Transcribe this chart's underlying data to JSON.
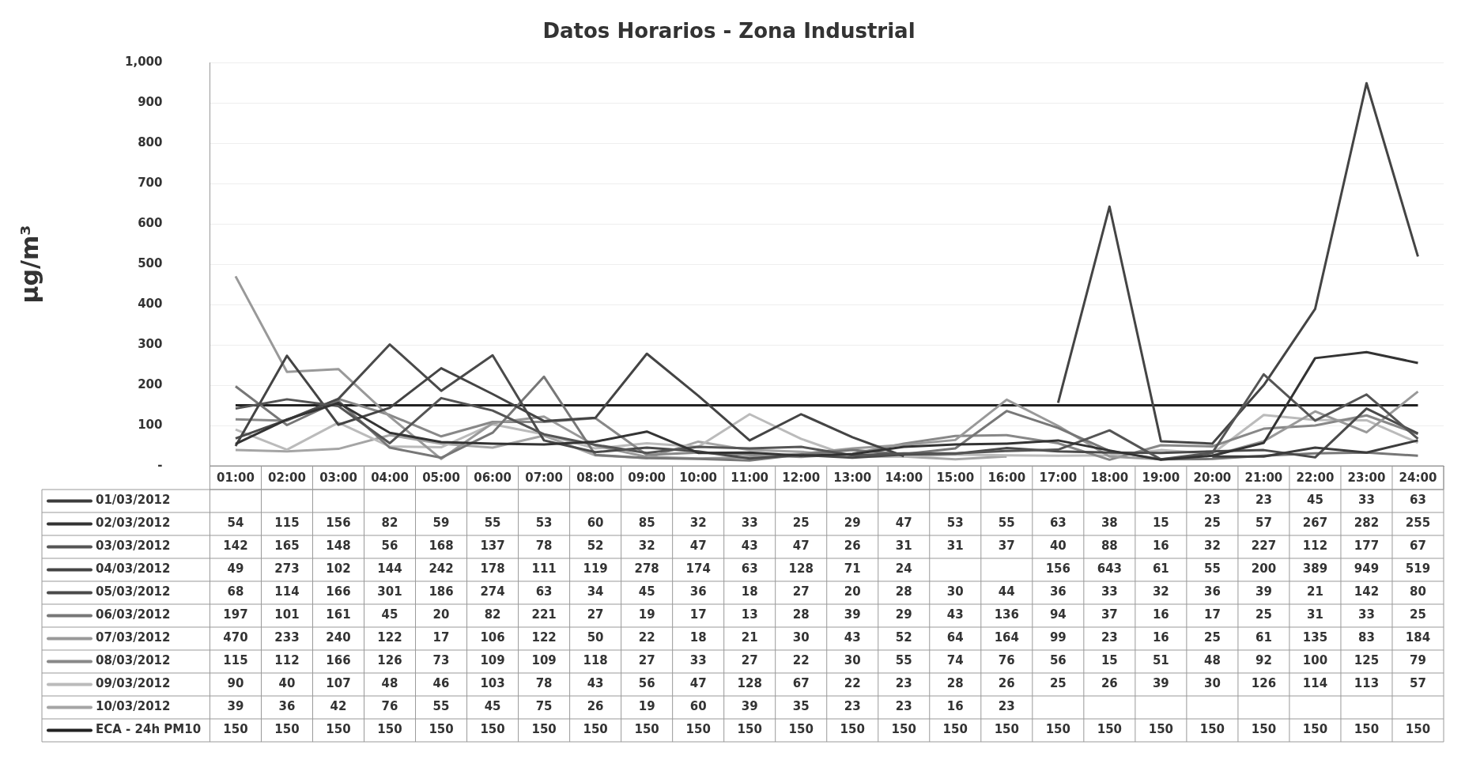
{
  "chart_data": {
    "type": "line",
    "title": "Datos Horarios - Zona Industrial",
    "ylabel": "µg/m³",
    "categories": [
      "01:00",
      "02:00",
      "03:00",
      "04:00",
      "05:00",
      "06:00",
      "07:00",
      "08:00",
      "09:00",
      "10:00",
      "11:00",
      "12:00",
      "13:00",
      "14:00",
      "15:00",
      "16:00",
      "17:00",
      "18:00",
      "19:00",
      "20:00",
      "21:00",
      "22:00",
      "23:00",
      "24:00"
    ],
    "series": [
      {
        "name": "01/03/2012",
        "color": "#3c3c3c",
        "values": [
          null,
          null,
          null,
          null,
          null,
          null,
          null,
          null,
          null,
          null,
          null,
          null,
          null,
          null,
          null,
          null,
          null,
          null,
          null,
          23,
          23,
          45,
          33,
          63
        ]
      },
      {
        "name": "02/03/2012",
        "color": "#333333",
        "values": [
          54,
          115,
          156,
          82,
          59,
          55,
          53,
          60,
          85,
          32,
          33,
          25,
          29,
          47,
          53,
          55,
          63,
          38,
          15,
          25,
          57,
          267,
          282,
          255
        ]
      },
      {
        "name": "03/03/2012",
        "color": "#555555",
        "values": [
          142,
          165,
          148,
          56,
          168,
          137,
          78,
          52,
          32,
          47,
          43,
          47,
          26,
          31,
          31,
          37,
          40,
          88,
          16,
          32,
          227,
          112,
          177,
          67
        ]
      },
      {
        "name": "04/03/2012",
        "color": "#444444",
        "values": [
          49,
          273,
          102,
          144,
          242,
          178,
          111,
          119,
          278,
          174,
          63,
          128,
          71,
          24,
          null,
          null,
          156,
          643,
          61,
          55,
          200,
          389,
          949,
          519
        ]
      },
      {
        "name": "05/03/2012",
        "color": "#4a4a4a",
        "values": [
          68,
          114,
          166,
          301,
          186,
          274,
          63,
          34,
          45,
          36,
          18,
          27,
          20,
          28,
          30,
          44,
          36,
          33,
          32,
          36,
          39,
          21,
          142,
          80
        ]
      },
      {
        "name": "06/03/2012",
        "color": "#777777",
        "values": [
          197,
          101,
          161,
          45,
          20,
          82,
          221,
          27,
          19,
          17,
          13,
          28,
          39,
          29,
          43,
          136,
          94,
          37,
          16,
          17,
          25,
          31,
          33,
          25
        ]
      },
      {
        "name": "07/03/2012",
        "color": "#999999",
        "values": [
          470,
          233,
          240,
          122,
          17,
          106,
          122,
          50,
          22,
          18,
          21,
          30,
          43,
          52,
          64,
          164,
          99,
          23,
          16,
          25,
          61,
          135,
          83,
          184
        ]
      },
      {
        "name": "08/03/2012",
        "color": "#888888",
        "values": [
          115,
          112,
          166,
          126,
          73,
          109,
          109,
          118,
          27,
          33,
          27,
          22,
          30,
          55,
          74,
          76,
          56,
          15,
          51,
          48,
          92,
          100,
          125,
          79
        ]
      },
      {
        "name": "09/03/2012",
        "color": "#bbbbbb",
        "values": [
          90,
          40,
          107,
          48,
          46,
          103,
          78,
          43,
          56,
          47,
          128,
          67,
          22,
          23,
          28,
          26,
          25,
          26,
          39,
          30,
          126,
          114,
          113,
          57
        ]
      },
      {
        "name": "10/03/2012",
        "color": "#a5a5a5",
        "values": [
          39,
          36,
          42,
          76,
          55,
          45,
          75,
          26,
          19,
          60,
          39,
          35,
          23,
          23,
          16,
          23,
          null,
          null,
          null,
          null,
          null,
          null,
          null,
          null
        ]
      },
      {
        "name": "ECA - 24h PM10",
        "color": "#222222",
        "values": [
          150,
          150,
          150,
          150,
          150,
          150,
          150,
          150,
          150,
          150,
          150,
          150,
          150,
          150,
          150,
          150,
          150,
          150,
          150,
          150,
          150,
          150,
          150,
          150
        ]
      }
    ],
    "ylim": [
      0,
      1000
    ],
    "yticks": [
      {
        "value": 0,
        "label": "-"
      },
      100,
      200,
      300,
      400,
      500,
      600,
      700,
      800,
      900,
      {
        "value": 1000,
        "label": "1,000"
      }
    ],
    "grid": "y",
    "legend": "bottom",
    "data_labels": true,
    "marker": "none",
    "line_style": "solid"
  }
}
